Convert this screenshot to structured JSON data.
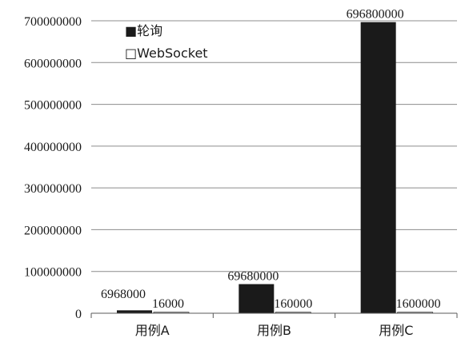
{
  "chart_data": {
    "type": "bar",
    "categories": [
      "用例A",
      "用例B",
      "用例C"
    ],
    "series": [
      {
        "name": "轮询",
        "values": [
          6968000,
          69680000,
          696800000
        ],
        "color": "#1a1a1a"
      },
      {
        "name": "WebSocket",
        "values": [
          16000,
          160000,
          1600000
        ],
        "color": "#ffffff"
      }
    ],
    "ylim": [
      0,
      700000000
    ],
    "yticks": [
      0,
      100000000,
      200000000,
      300000000,
      400000000,
      500000000,
      600000000,
      700000000
    ],
    "ytick_labels": [
      "0",
      "100000000",
      "200000000",
      "300000000",
      "400000000",
      "500000000",
      "600000000",
      "700000000"
    ],
    "data_labels": [
      [
        "6968000",
        "69680000",
        "696800000"
      ],
      [
        "16000",
        "160000",
        "1600000"
      ]
    ],
    "grid": true,
    "legend": {
      "position": "top-left",
      "markers": [
        "■",
        "□"
      ]
    },
    "title": "",
    "xlabel": "",
    "ylabel": ""
  }
}
